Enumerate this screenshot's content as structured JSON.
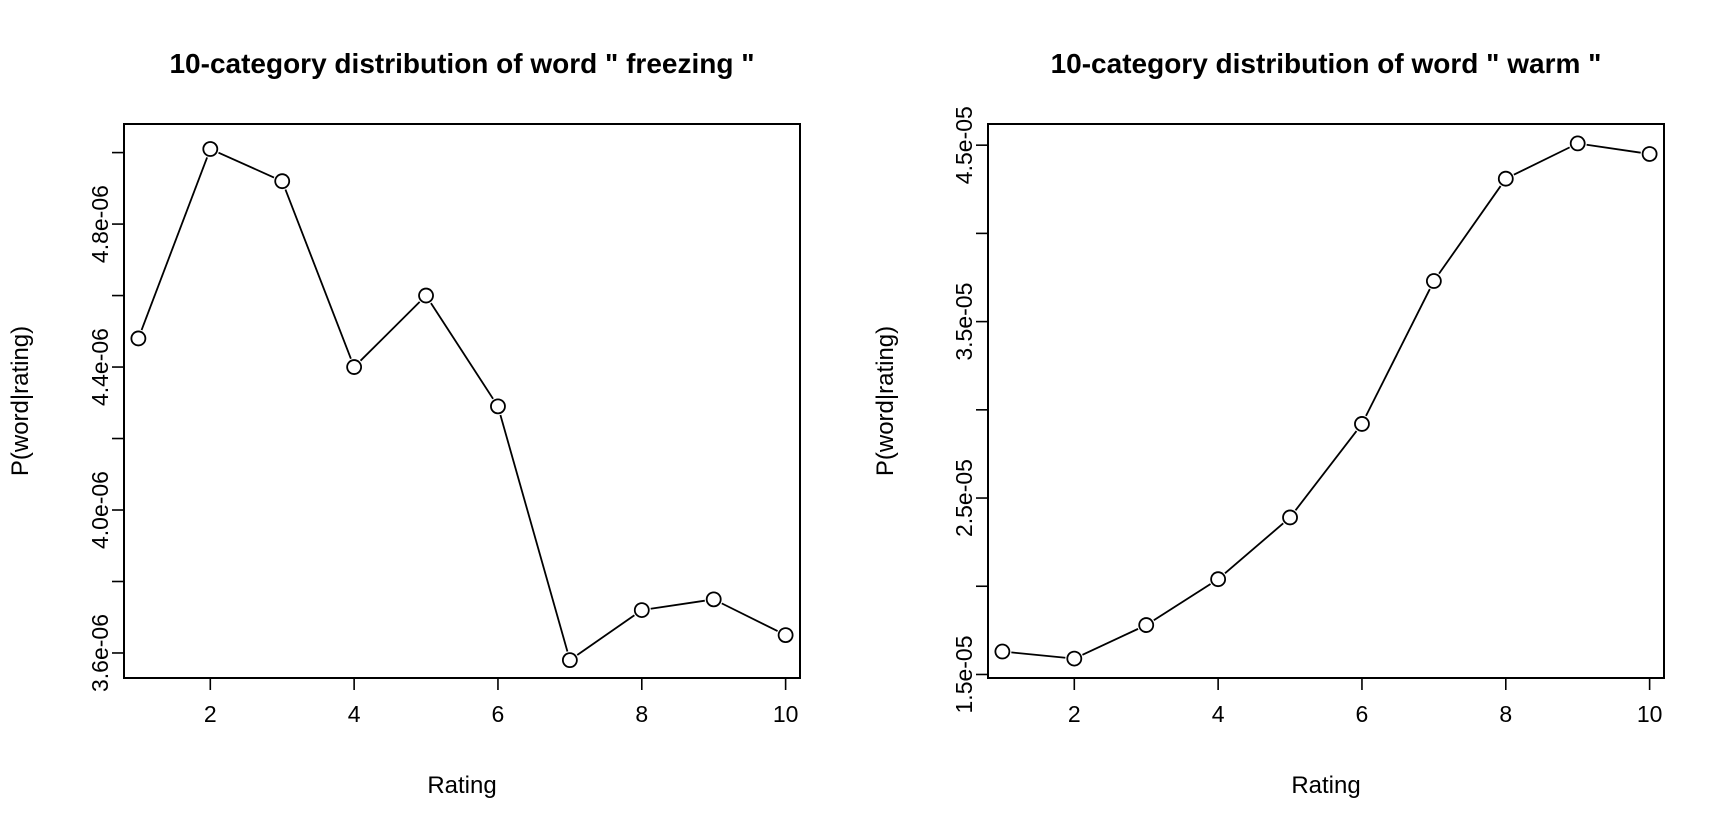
{
  "chart_data": [
    {
      "type": "line",
      "title": "10-category distribution of word \" freezing \"",
      "xlabel": "Rating",
      "ylabel": "P(word|rating)",
      "x": [
        1,
        2,
        3,
        4,
        5,
        6,
        7,
        8,
        9,
        10
      ],
      "series": [
        {
          "values": [
            4.48e-06,
            5.01e-06,
            4.92e-06,
            4.4e-06,
            4.6e-06,
            4.29e-06,
            3.58e-06,
            3.72e-06,
            3.75e-06,
            3.65e-06
          ]
        }
      ],
      "xlim": [
        0.8,
        10.2
      ],
      "ylim": [
        3.53e-06,
        5.08e-06
      ],
      "x_ticks": [
        2,
        4,
        6,
        8,
        10
      ],
      "x_tick_labels": [
        "2",
        "4",
        "6",
        "8",
        "10"
      ],
      "y_ticks": [
        3.6e-06,
        3.8e-06,
        4e-06,
        4.2e-06,
        4.4e-06,
        4.6e-06,
        4.8e-06,
        5e-06
      ],
      "y_tick_labels": [
        "3.6e-06",
        "",
        "4.0e-06",
        "",
        "4.4e-06",
        "",
        "4.8e-06",
        ""
      ],
      "grid": false,
      "markers": "open-circle"
    },
    {
      "type": "line",
      "title": "10-category distribution of word \" warm \"",
      "xlabel": "Rating",
      "ylabel": "P(word|rating)",
      "x": [
        1,
        2,
        3,
        4,
        5,
        6,
        7,
        8,
        9,
        10
      ],
      "series": [
        {
          "values": [
            1.63e-05,
            1.59e-05,
            1.78e-05,
            2.04e-05,
            2.39e-05,
            2.92e-05,
            3.73e-05,
            4.31e-05,
            4.51e-05,
            4.45e-05
          ]
        }
      ],
      "xlim": [
        0.8,
        10.2
      ],
      "ylim": [
        1.48e-05,
        4.62e-05
      ],
      "x_ticks": [
        2,
        4,
        6,
        8,
        10
      ],
      "x_tick_labels": [
        "2",
        "4",
        "6",
        "8",
        "10"
      ],
      "y_ticks": [
        1.5e-05,
        2e-05,
        2.5e-05,
        3e-05,
        3.5e-05,
        4e-05,
        4.5e-05
      ],
      "y_tick_labels": [
        "1.5e-05",
        "",
        "2.5e-05",
        "",
        "3.5e-05",
        "",
        "4.5e-05"
      ],
      "grid": false,
      "markers": "open-circle"
    }
  ]
}
